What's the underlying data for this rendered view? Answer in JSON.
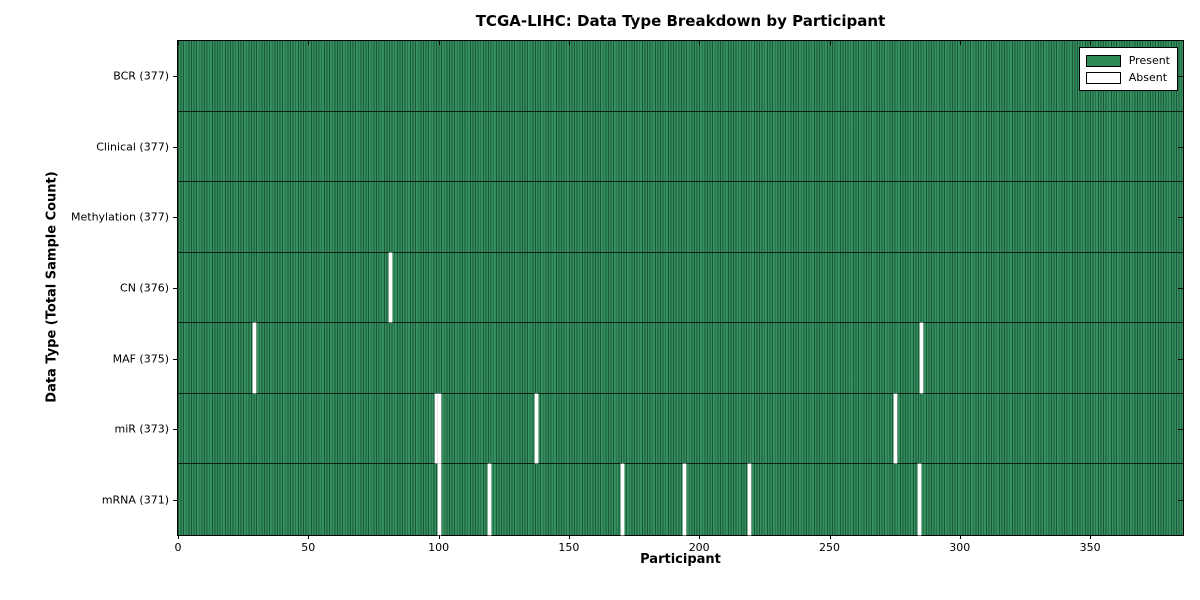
{
  "chart_data": {
    "type": "heatmap",
    "title": "TCGA-LIHC: Data Type Breakdown by Participant",
    "xlabel": "Participant",
    "ylabel": "Data Type (Total Sample Count)",
    "x_ticks": [
      0,
      50,
      100,
      150,
      200,
      250,
      300,
      350
    ],
    "x_range": [
      0,
      377
    ],
    "n_participants": 377,
    "grid": false,
    "legend_position": "upper right",
    "legend": [
      {
        "label": "Present",
        "color": "#2e8b57"
      },
      {
        "label": "Absent",
        "color": "#ffffff"
      }
    ],
    "colors": {
      "present_fill": "#2e8b57",
      "present_stripe_light": "#3b9466",
      "present_stripe_dark": "#1b5838",
      "absent_fill": "#ffffff",
      "frame": "#000000"
    },
    "rows": [
      {
        "label": "BCR (377)",
        "data_type": "BCR",
        "total_sample_count": 377,
        "absent_participants": []
      },
      {
        "label": "Clinical (377)",
        "data_type": "Clinical",
        "total_sample_count": 377,
        "absent_participants": []
      },
      {
        "label": "Methylation (377)",
        "data_type": "Methylation",
        "total_sample_count": 377,
        "absent_participants": []
      },
      {
        "label": "CN (376)",
        "data_type": "CN",
        "total_sample_count": 376,
        "absent_participants": [
          81
        ]
      },
      {
        "label": "MAF (375)",
        "data_type": "MAF",
        "total_sample_count": 375,
        "absent_participants": [
          29,
          285
        ]
      },
      {
        "label": "miR (373)",
        "data_type": "miR",
        "total_sample_count": 373,
        "absent_participants": [
          99,
          100,
          137,
          275
        ]
      },
      {
        "label": "mRNA (371)",
        "data_type": "mRNA",
        "total_sample_count": 371,
        "absent_participants": [
          100,
          119,
          170,
          194,
          219,
          284
        ]
      }
    ]
  }
}
